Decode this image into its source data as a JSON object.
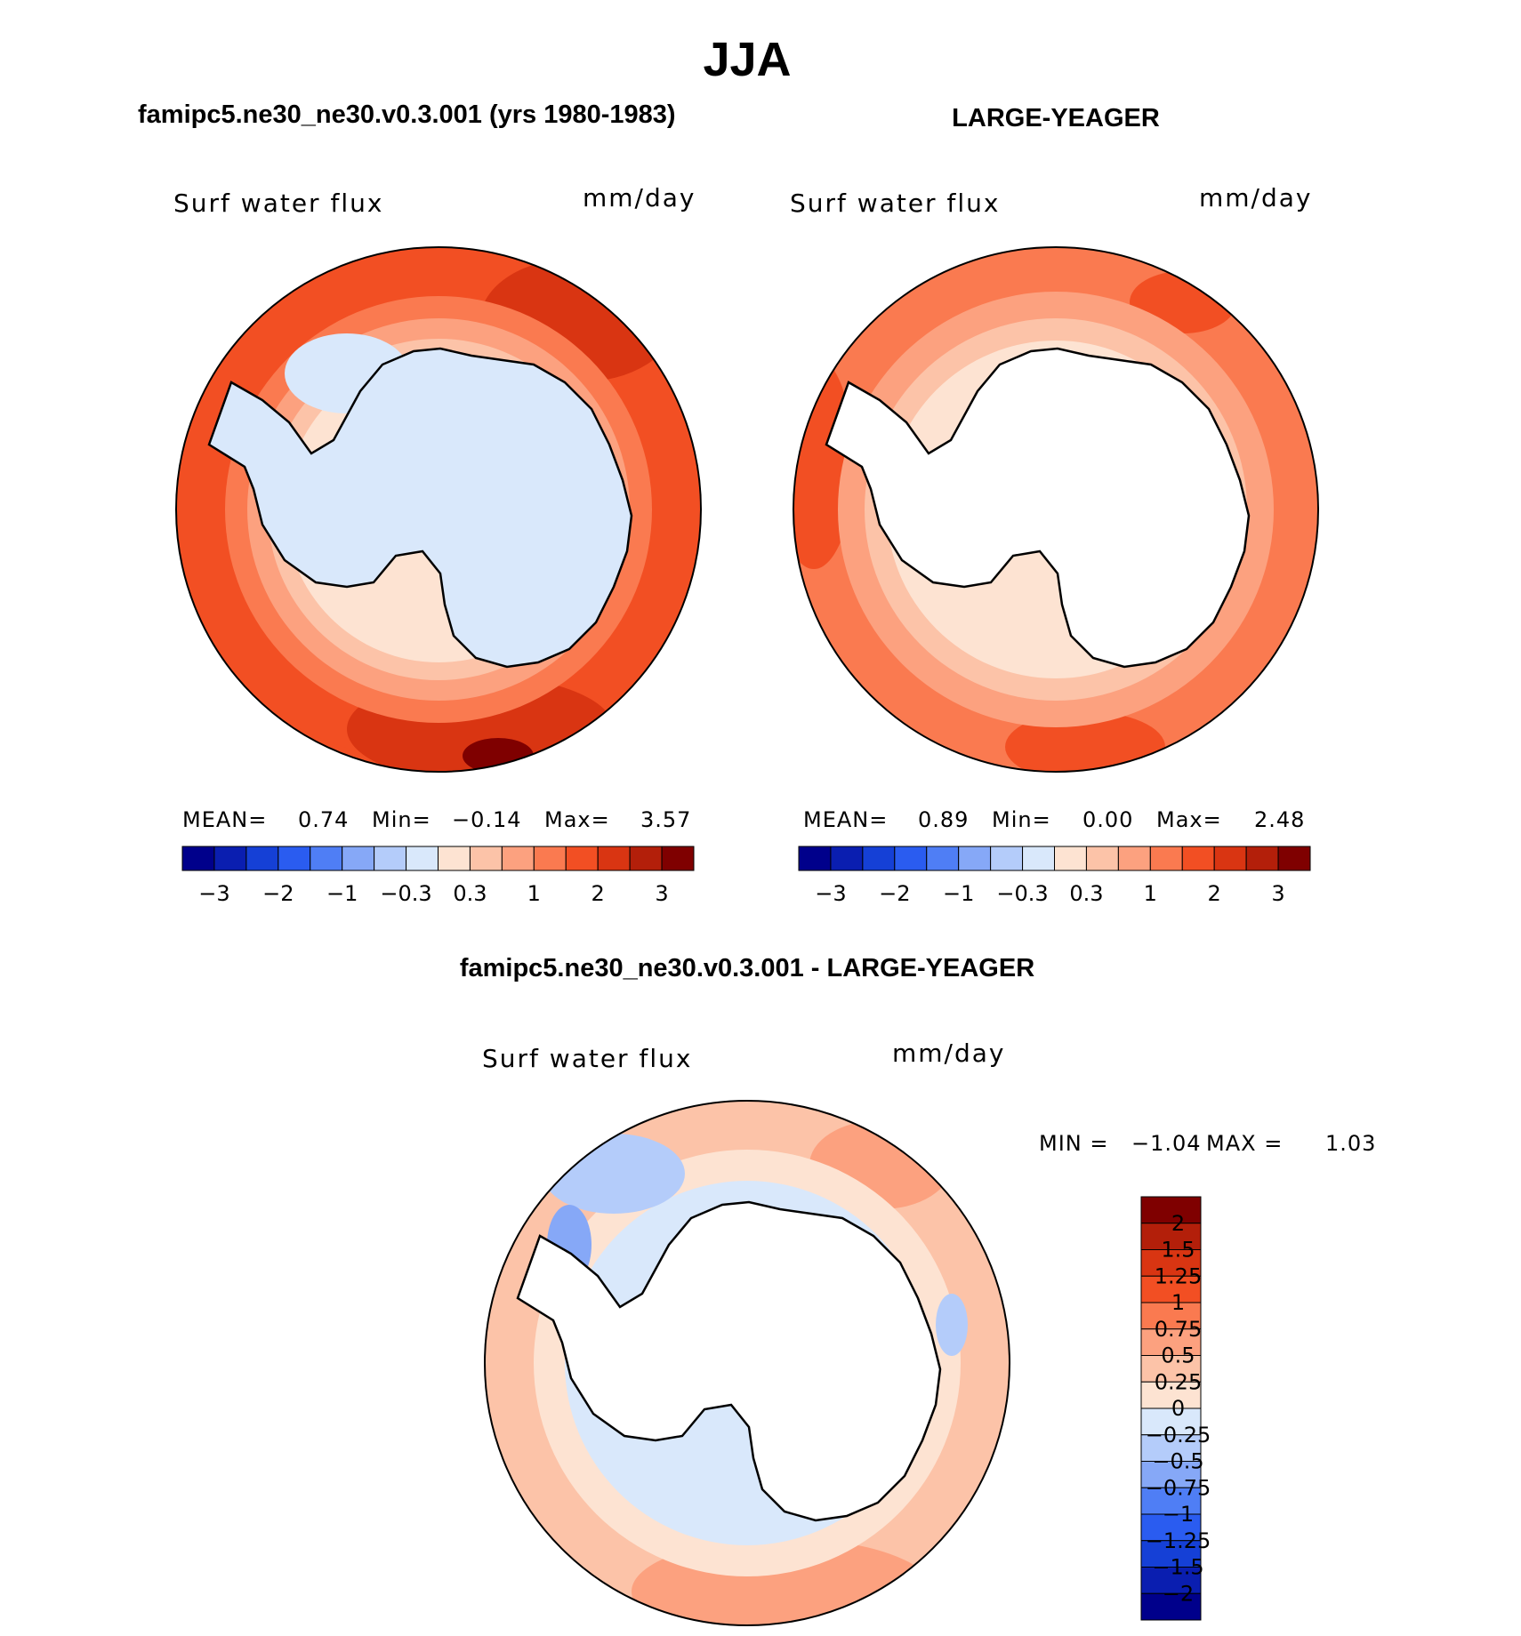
{
  "chart_data": [
    {
      "type": "heatmap",
      "projection": "south-polar-stereographic",
      "title": "famipc5.ne30_ne30.v0.3.001 (yrs 1980-1983)",
      "variable": "Surf water flux",
      "units": "mm/day",
      "stats": {
        "mean_label": "MEAN=",
        "mean": "0.74",
        "min_label": "Min=",
        "min": "−0.14",
        "max_label": "Max=",
        "max": "3.57"
      },
      "colorbar": {
        "orientation": "horizontal",
        "colors": [
          "#00008b",
          "#0a1eb0",
          "#1540d6",
          "#2a5cf0",
          "#4f7ef5",
          "#86a8f7",
          "#b4ccfa",
          "#d9e8fb",
          "#fde3d2",
          "#fcc3a8",
          "#fca17f",
          "#fa7a50",
          "#f24f23",
          "#d93512",
          "#b31f0a",
          "#7f0000"
        ],
        "labels": [
          "−3",
          "−2",
          "−1",
          "−0.3",
          "0.3",
          "1",
          "2",
          "3"
        ]
      }
    },
    {
      "type": "heatmap",
      "projection": "south-polar-stereographic",
      "title": "LARGE-YEAGER",
      "variable": "Surf water flux",
      "units": "mm/day",
      "stats": {
        "mean_label": "MEAN=",
        "mean": "0.89",
        "min_label": "Min=",
        "min": "0.00",
        "max_label": "Max=",
        "max": "2.48"
      },
      "colorbar": {
        "orientation": "horizontal",
        "colors": [
          "#00008b",
          "#0a1eb0",
          "#1540d6",
          "#2a5cf0",
          "#4f7ef5",
          "#86a8f7",
          "#b4ccfa",
          "#d9e8fb",
          "#fde3d2",
          "#fcc3a8",
          "#fca17f",
          "#fa7a50",
          "#f24f23",
          "#d93512",
          "#b31f0a",
          "#7f0000"
        ],
        "labels": [
          "−3",
          "−2",
          "−1",
          "−0.3",
          "0.3",
          "1",
          "2",
          "3"
        ]
      }
    },
    {
      "type": "heatmap",
      "projection": "south-polar-stereographic",
      "title": "famipc5.ne30_ne30.v0.3.001 - LARGE-YEAGER",
      "variable": "Surf water flux",
      "units": "mm/day",
      "stats": {
        "min_label": "MIN =",
        "min": "−1.04",
        "max_label": "MAX =",
        "max": "1.03"
      },
      "colorbar": {
        "orientation": "vertical",
        "colors": [
          "#00008b",
          "#0a1eb0",
          "#1540d6",
          "#2a5cf0",
          "#4f7ef5",
          "#86a8f7",
          "#b4ccfa",
          "#d9e8fb",
          "#fde3d2",
          "#fcc3a8",
          "#fca17f",
          "#fa7a50",
          "#f24f23",
          "#d93512",
          "#b31f0a",
          "#7f0000"
        ],
        "labels": [
          "2",
          "1.5",
          "1.25",
          "1",
          "0.75",
          "0.5",
          "0.25",
          "0",
          "−0.25",
          "−0.5",
          "−0.75",
          "−1",
          "−1.25",
          "−1.5",
          "−2"
        ]
      }
    }
  ],
  "figure": {
    "title": "JJA"
  }
}
